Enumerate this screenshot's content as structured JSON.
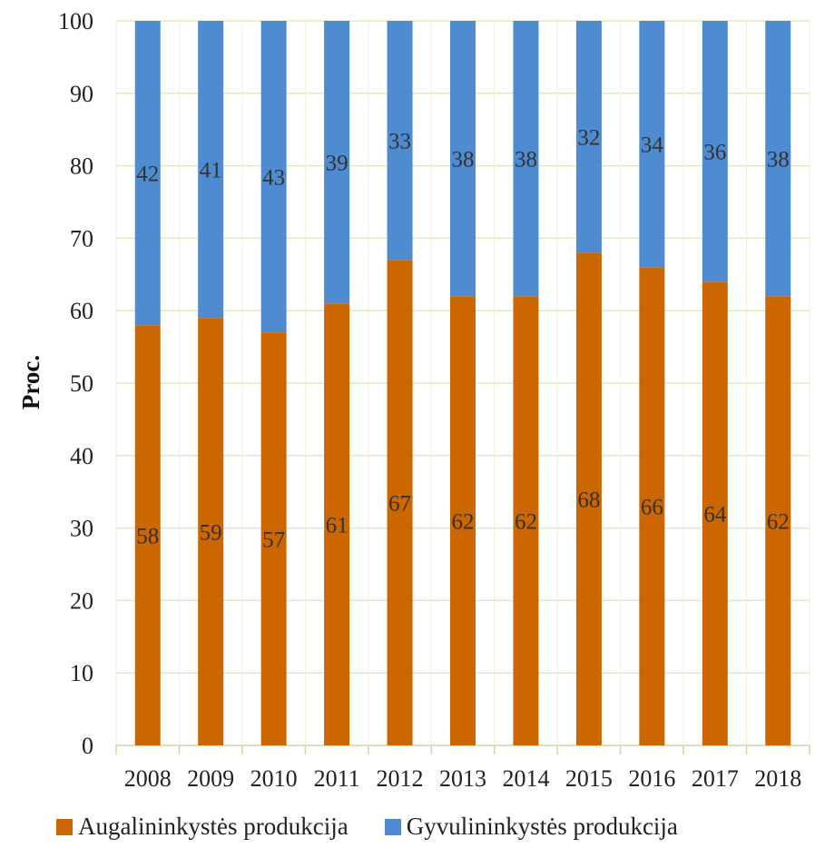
{
  "chart_data": {
    "type": "bar",
    "stacked": true,
    "categories": [
      "2008",
      "2009",
      "2010",
      "2011",
      "2012",
      "2013",
      "2014",
      "2015",
      "2016",
      "2017",
      "2018"
    ],
    "series": [
      {
        "name": "Augalininkystės produkcija",
        "color": "#cc6600",
        "values": [
          58,
          59,
          57,
          61,
          67,
          62,
          62,
          68,
          66,
          64,
          62
        ]
      },
      {
        "name": "Gyvulininkystės produkcija",
        "color": "#4f8bd0",
        "values": [
          42,
          41,
          43,
          39,
          33,
          38,
          38,
          32,
          34,
          36,
          38
        ]
      }
    ],
    "ylabel": "Proc.",
    "xlabel": "",
    "ylim": [
      0,
      100
    ],
    "yticks": [
      0,
      10,
      20,
      30,
      40,
      50,
      60,
      70,
      80,
      90,
      100
    ],
    "grid": true,
    "legend": "bottom"
  }
}
